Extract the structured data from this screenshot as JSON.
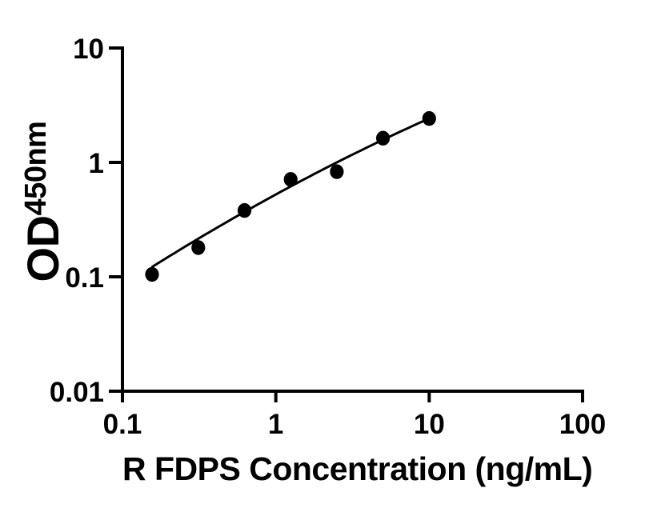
{
  "figure": {
    "background_color": "#ffffff",
    "ink_color": "#000000"
  },
  "chart_data": {
    "type": "scatter",
    "title": "",
    "grid": false,
    "legend": false,
    "x_axis": {
      "label": "R FDPS Concentration (ng/mL)",
      "scale": "log",
      "range": [
        0.1,
        100
      ],
      "ticks": [
        {
          "value": 0.1,
          "label": "0.1"
        },
        {
          "value": 1,
          "label": "1"
        },
        {
          "value": 10,
          "label": "10"
        },
        {
          "value": 100,
          "label": "100"
        }
      ]
    },
    "y_axis": {
      "label_main": "OD",
      "label_sub": "450nm",
      "scale": "log",
      "range": [
        0.01,
        10
      ],
      "ticks": [
        {
          "value": 0.01,
          "label": "0.01"
        },
        {
          "value": 0.1,
          "label": "0.1"
        },
        {
          "value": 1,
          "label": "1"
        },
        {
          "value": 10,
          "label": "10"
        }
      ]
    },
    "series": [
      {
        "name": "standard-curve-points",
        "marker": "filled-circle",
        "color": "#000000",
        "points": [
          {
            "x": 0.156,
            "y": 0.105
          },
          {
            "x": 0.3125,
            "y": 0.18
          },
          {
            "x": 0.625,
            "y": 0.38
          },
          {
            "x": 1.25,
            "y": 0.71
          },
          {
            "x": 2.5,
            "y": 0.83
          },
          {
            "x": 5,
            "y": 1.63
          },
          {
            "x": 10,
            "y": 2.42
          }
        ]
      }
    ],
    "fit_curve": {
      "type": "quadratic-loglog",
      "equation": "log10(y) = a + b*log10(x) + c*log10(x)^2",
      "a": -0.2804,
      "b": 0.7311,
      "c": -0.0667,
      "x_start": 0.155,
      "x_end": 10.15,
      "color": "#000000"
    }
  }
}
